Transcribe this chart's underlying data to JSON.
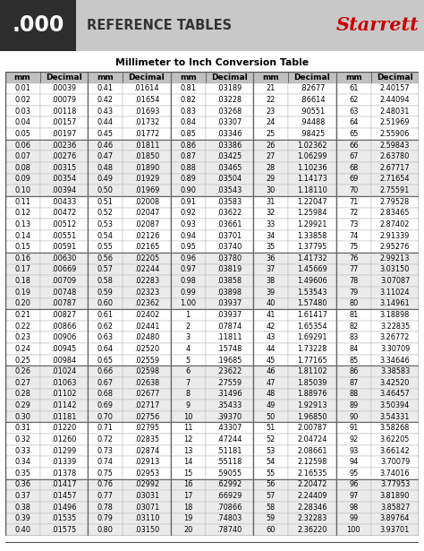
{
  "title": "Millimeter to Inch Conversion Table",
  "header_text": "REFERENCE TABLES",
  "header_dot": ".000",
  "starrett_text": "Starrett",
  "starrett_color": "#cc0000",
  "header_dark_bg": "#2d2d2d",
  "header_light_bg": "#c8c8c8",
  "col_headers": [
    "mm",
    "Decimal",
    "mm",
    "Decimal",
    "mm",
    "Decimal",
    "mm",
    "Decimal",
    "mm",
    "Decimal"
  ],
  "table_data": [
    [
      "0.01",
      ".00039",
      "0.41",
      ".01614",
      "0.81",
      ".03189",
      "21",
      ".82677",
      "61",
      "2.40157"
    ],
    [
      "0.02",
      ".00079",
      "0.42",
      ".01654",
      "0.82",
      ".03228",
      "22",
      ".86614",
      "62",
      "2.44094"
    ],
    [
      "0.03",
      ".00118",
      "0.43",
      ".01693",
      "0.83",
      ".03268",
      "23",
      ".90551",
      "63",
      "2.48031"
    ],
    [
      "0.04",
      ".00157",
      "0.44",
      ".01732",
      "0.84",
      ".03307",
      "24",
      ".94488",
      "64",
      "2.51969"
    ],
    [
      "0.05",
      ".00197",
      "0.45",
      ".01772",
      "0.85",
      ".03346",
      "25",
      ".98425",
      "65",
      "2.55906"
    ],
    [
      "0.06",
      ".00236",
      "0.46",
      ".01811",
      "0.86",
      ".03386",
      "26",
      "1.02362",
      "66",
      "2.59843"
    ],
    [
      "0.07",
      ".00276",
      "0.47",
      ".01850",
      "0.87",
      ".03425",
      "27",
      "1.06299",
      "67",
      "2.63780"
    ],
    [
      "0.08",
      ".00315",
      "0.48",
      ".01890",
      "0.88",
      ".03465",
      "28",
      "1.10236",
      "68",
      "2.67717"
    ],
    [
      "0.09",
      ".00354",
      "0.49",
      ".01929",
      "0.89",
      ".03504",
      "29",
      "1.14173",
      "69",
      "2.71654"
    ],
    [
      "0.10",
      ".00394",
      "0.50",
      ".01969",
      "0.90",
      ".03543",
      "30",
      "1.18110",
      "70",
      "2.75591"
    ],
    [
      "0.11",
      ".00433",
      "0.51",
      ".02008",
      "0.91",
      ".03583",
      "31",
      "1.22047",
      "71",
      "2.79528"
    ],
    [
      "0.12",
      ".00472",
      "0.52",
      ".02047",
      "0.92",
      ".03622",
      "32",
      "1.25984",
      "72",
      "2.83465"
    ],
    [
      "0.13",
      ".00512",
      "0.53",
      ".02087",
      "0.93",
      ".03661",
      "33",
      "1.29921",
      "73",
      "2.87402"
    ],
    [
      "0.14",
      ".00551",
      "0.54",
      ".02126",
      "0.94",
      ".03701",
      "34",
      "1.33858",
      "74",
      "2.91339"
    ],
    [
      "0.15",
      ".00591",
      "0.55",
      ".02165",
      "0.95",
      ".03740",
      "35",
      "1.37795",
      "75",
      "2.95276"
    ],
    [
      "0.16",
      ".00630",
      "0.56",
      ".02205",
      "0.96",
      ".03780",
      "36",
      "1.41732",
      "76",
      "2.99213"
    ],
    [
      "0.17",
      ".00669",
      "0.57",
      ".02244",
      "0.97",
      ".03819",
      "37",
      "1.45669",
      "77",
      "3.03150"
    ],
    [
      "0.18",
      ".00709",
      "0.58",
      ".02283",
      "0.98",
      ".03858",
      "38",
      "1.49606",
      "78",
      "3.07087"
    ],
    [
      "0.19",
      ".00748",
      "0.59",
      ".02323",
      "0.99",
      ".03898",
      "39",
      "1.53543",
      "79",
      "3.11024"
    ],
    [
      "0.20",
      ".00787",
      "0.60",
      ".02362",
      "1.00",
      ".03937",
      "40",
      "1.57480",
      "80",
      "3.14961"
    ],
    [
      "0.21",
      ".00827",
      "0.61",
      ".02402",
      "1",
      ".03937",
      "41",
      "1.61417",
      "81",
      "3.18898"
    ],
    [
      "0.22",
      ".00866",
      "0.62",
      ".02441",
      "2",
      ".07874",
      "42",
      "1.65354",
      "82",
      "3.22835"
    ],
    [
      "0.23",
      ".00906",
      "0.63",
      ".02480",
      "3",
      ".11811",
      "43",
      "1.69291",
      "83",
      "3.26772"
    ],
    [
      "0.24",
      ".00945",
      "0.64",
      ".02520",
      "4",
      ".15748",
      "44",
      "1.73228",
      "84",
      "3.30709"
    ],
    [
      "0.25",
      ".00984",
      "0.65",
      ".02559",
      "5",
      ".19685",
      "45",
      "1.77165",
      "85",
      "3.34646"
    ],
    [
      "0.26",
      ".01024",
      "0.66",
      ".02598",
      "6",
      ".23622",
      "46",
      "1.81102",
      "86",
      "3.38583"
    ],
    [
      "0.27",
      ".01063",
      "0.67",
      ".02638",
      "7",
      ".27559",
      "47",
      "1.85039",
      "87",
      "3.42520"
    ],
    [
      "0.28",
      ".01102",
      "0.68",
      ".02677",
      "8",
      ".31496",
      "48",
      "1.88976",
      "88",
      "3.46457"
    ],
    [
      "0.29",
      ".01142",
      "0.69",
      ".02717",
      "9",
      ".35433",
      "49",
      "1.92913",
      "89",
      "3.50394"
    ],
    [
      "0.30",
      ".01181",
      "0.70",
      ".02756",
      "10",
      ".39370",
      "50",
      "1.96850",
      "90",
      "3.54331"
    ],
    [
      "0.31",
      ".01220",
      "0.71",
      ".02795",
      "11",
      ".43307",
      "51",
      "2.00787",
      "91",
      "3.58268"
    ],
    [
      "0.32",
      ".01260",
      "0.72",
      ".02835",
      "12",
      ".47244",
      "52",
      "2.04724",
      "92",
      "3.62205"
    ],
    [
      "0.33",
      ".01299",
      "0.73",
      ".02874",
      "13",
      ".51181",
      "53",
      "2.08661",
      "93",
      "3.66142"
    ],
    [
      "0.34",
      ".01339",
      "0.74",
      ".02913",
      "14",
      ".55118",
      "54",
      "2.12598",
      "94",
      "3.70079"
    ],
    [
      "0.35",
      ".01378",
      "0.75",
      ".02953",
      "15",
      ".59055",
      "55",
      "2.16535",
      "95",
      "3.74016"
    ],
    [
      "0.36",
      ".01417",
      "0.76",
      ".02992",
      "16",
      ".62992",
      "56",
      "2.20472",
      "96",
      "3.77953"
    ],
    [
      "0.37",
      ".01457",
      "0.77",
      ".03031",
      "17",
      ".66929",
      "57",
      "2.24409",
      "97",
      "3.81890"
    ],
    [
      "0.38",
      ".01496",
      "0.78",
      ".03071",
      "18",
      ".70866",
      "58",
      "2.28346",
      "98",
      "3.85827"
    ],
    [
      "0.39",
      ".01535",
      "0.79",
      ".03110",
      "19",
      ".74803",
      "59",
      "2.32283",
      "99",
      "3.89764"
    ],
    [
      "0.40",
      ".01575",
      "0.80",
      ".03150",
      "20",
      ".78740",
      "60",
      "2.36220",
      "100",
      "3.93701"
    ]
  ]
}
